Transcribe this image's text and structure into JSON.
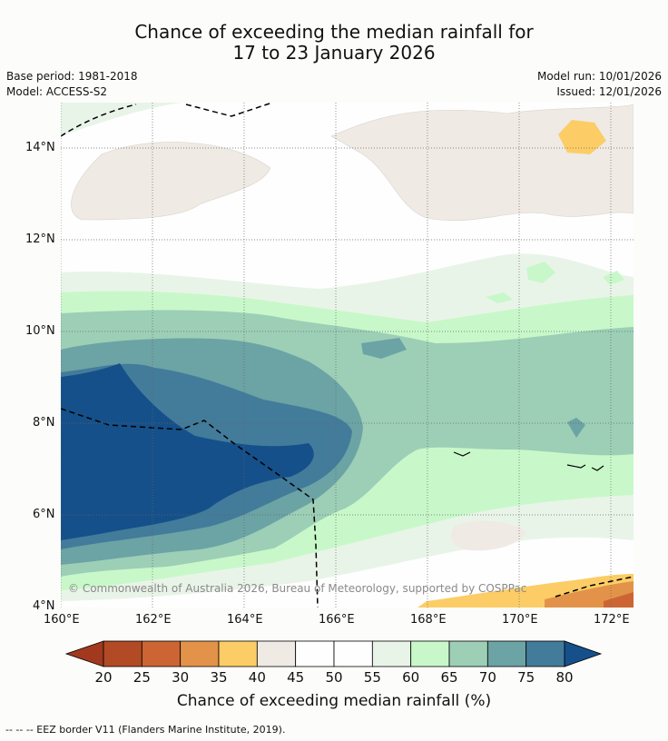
{
  "title": {
    "line1": "Chance of exceeding the median rainfall for",
    "line2": "17 to 23 January 2026"
  },
  "meta": {
    "base_period": "Base period: 1981-2018",
    "model": "Model: ACCESS-S2",
    "model_run": "Model run: 10/01/2026",
    "issued": "Issued: 12/01/2026"
  },
  "map": {
    "lat_labels": [
      "14°N",
      "12°N",
      "10°N",
      "8°N",
      "6°N",
      "4°N"
    ],
    "lon_labels": [
      "160°E",
      "162°E",
      "164°E",
      "166°E",
      "168°E",
      "170°E",
      "172°E"
    ],
    "copyright": "© Commonwealth of Australia 2026, Bureau of Meteorology, supported by COSPPac"
  },
  "colorbar": {
    "ticks": [
      "20",
      "25",
      "30",
      "35",
      "40",
      "45",
      "50",
      "55",
      "60",
      "65",
      "70",
      "75",
      "80"
    ],
    "colors": [
      "#a2391f",
      "#b24a26",
      "#cc6533",
      "#e29349",
      "#fccd66",
      "#efeae4",
      "#fefefe",
      "#fefefe",
      "#e9f4e8",
      "#c8f8c9",
      "#9ccfb6",
      "#6ca3a5",
      "#437b9a",
      "#15508a"
    ],
    "title": "Chance of exceeding median rainfall (%)"
  },
  "footnote": "--  --  -- EEZ border V11 (Flanders Marine Institute, 2019)."
}
